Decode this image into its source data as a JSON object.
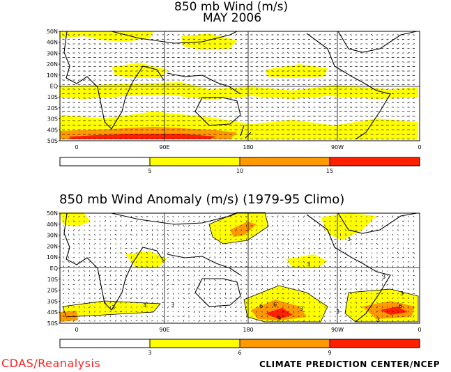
{
  "colors": {
    "c1": "#ffffff",
    "c2": "#ffff00",
    "c3": "#ff9900",
    "c4": "#ff2000",
    "frame": "#000000"
  },
  "top": {
    "title_line1": "850 mb Wind (m/s)",
    "title_line2": "MAY 2006",
    "lat_labels": [
      "50N",
      "40N",
      "30N",
      "20N",
      "10N",
      "EQ",
      "10S",
      "20S",
      "30S",
      "40S",
      "50S"
    ],
    "lon_labels": [
      "0",
      "90E",
      "180",
      "90W",
      "0"
    ],
    "colorbar_labels": [
      "5",
      "10",
      "15"
    ]
  },
  "bottom": {
    "title": "850 mb Wind Anomaly (m/s) (1979-95 Climo)",
    "lat_labels": [
      "50N",
      "40N",
      "30N",
      "20N",
      "10N",
      "EQ",
      "10S",
      "20S",
      "30S",
      "40S",
      "50S"
    ],
    "lon_labels": [
      "0",
      "90E",
      "180",
      "90W",
      "0"
    ],
    "colorbar_labels": [
      "3",
      "6",
      "9"
    ],
    "contour_labels": [
      "3",
      "3",
      "3",
      "3",
      "3",
      "3",
      "3",
      "3",
      "3",
      "6",
      "9",
      "6",
      "6",
      "3"
    ]
  },
  "footer": {
    "left": "CDAS/Reanalysis",
    "right": "CLIMATE PREDICTION CENTER/NCEP"
  }
}
